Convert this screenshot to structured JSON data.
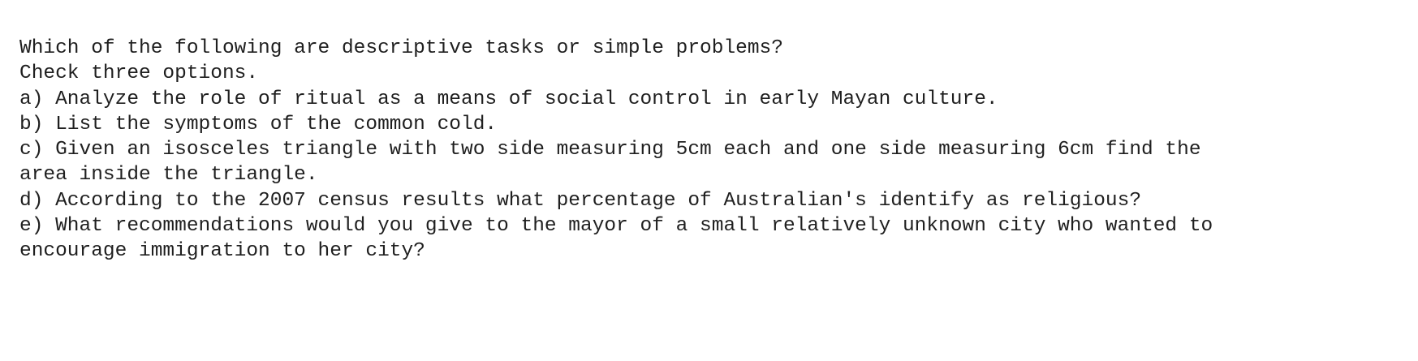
{
  "question": "Which of the following are descriptive tasks or simple problems?",
  "instruction": "Check three options.",
  "options": [
    "a) Analyze the role of ritual as a means of social control in early Mayan culture.",
    "b) List the symptoms of the common cold.",
    "c) Given an isosceles triangle with two side measuring 5cm each and one side measuring 6cm find the area inside the triangle.",
    "d) According to the 2007 census results what percentage of Australian's identify as religious?",
    "e) What recommendations would you give to the mayor of a small relatively unknown city who wanted to encourage immigration to her city?"
  ]
}
